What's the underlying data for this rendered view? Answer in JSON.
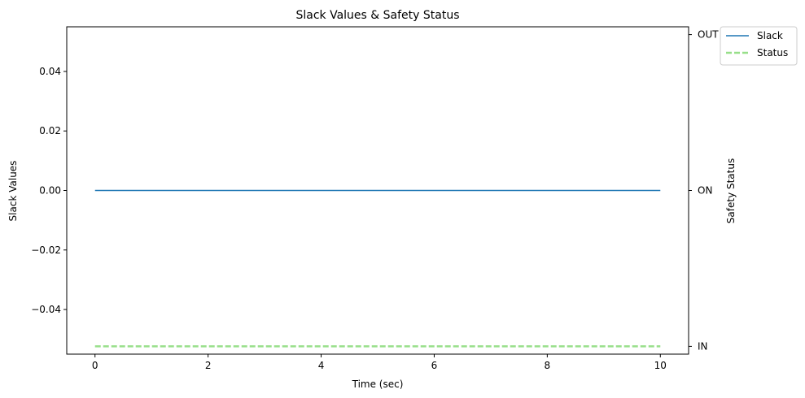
{
  "chart_data": {
    "type": "line",
    "title": "Slack Values & Safety Status",
    "xlabel": "Time (sec)",
    "ylabel": "Slack Values",
    "y2label": "Safety Status",
    "xlim": [
      -0.5,
      10.5
    ],
    "ylim": [
      -0.055,
      0.055
    ],
    "x_ticks": [
      0,
      2,
      4,
      6,
      8,
      10
    ],
    "x_tick_labels": [
      "0",
      "2",
      "4",
      "6",
      "8",
      "10"
    ],
    "y_ticks": [
      -0.04,
      -0.02,
      0.0,
      0.02,
      0.04
    ],
    "y_tick_labels": [
      "−0.04",
      "−0.02",
      "0.00",
      "0.02",
      "0.04"
    ],
    "y2_categories": [
      "IN",
      "ON",
      "OUT"
    ],
    "y2lim": [
      -0.05,
      2.05
    ],
    "grid": false,
    "legend_position": "upper-right-outside",
    "series": [
      {
        "name": "Slack",
        "axis": "left",
        "color": "#1f77b4",
        "style": "solid",
        "x": [
          0,
          10
        ],
        "y": [
          0,
          0
        ]
      },
      {
        "name": "Status",
        "axis": "right",
        "color": "#98df8a",
        "style": "dashed",
        "x": [
          0,
          10
        ],
        "y": [
          0,
          0
        ]
      }
    ]
  }
}
